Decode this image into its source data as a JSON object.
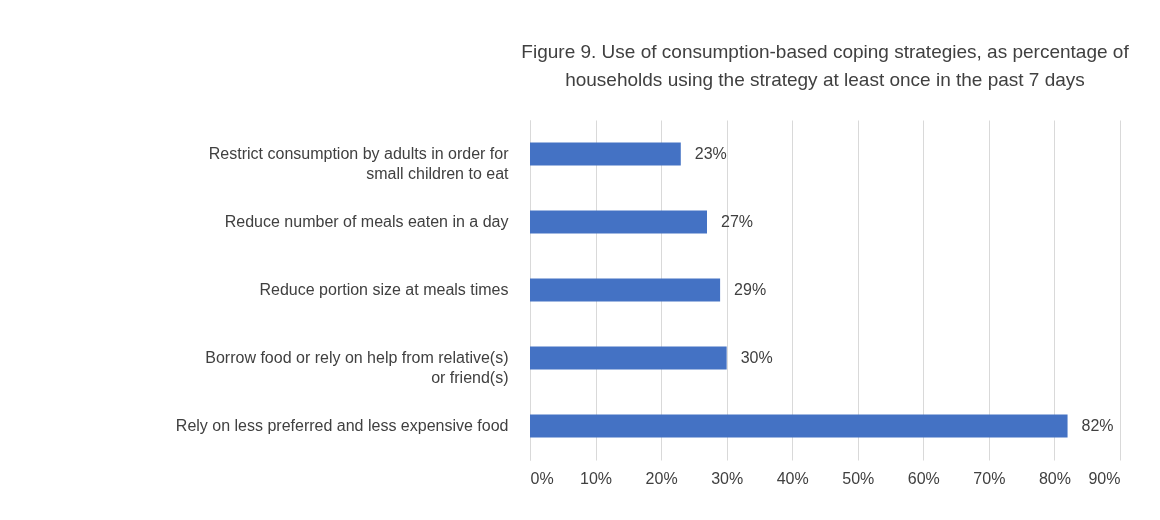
{
  "chart_data": {
    "type": "bar",
    "orientation": "horizontal",
    "title": "Figure 9. Use of consumption-based coping strategies, as percentage of households using the strategy at least once in the past 7 days",
    "categories": [
      "Restrict consumption by adults in order for small children to eat",
      "Reduce number of meals eaten in a day",
      "Reduce portion size at meals times",
      "Borrow food or rely on help from relative(s) or friend(s)",
      "Rely on less preferred and less expensive food"
    ],
    "values": [
      23,
      27,
      29,
      30,
      82
    ],
    "value_labels": [
      "23%",
      "27%",
      "29%",
      "30%",
      "82%"
    ],
    "color": "#4472c4",
    "xlim": [
      0,
      90
    ],
    "xticks": [
      {
        "value": 0,
        "label": "0%"
      },
      {
        "value": 10,
        "label": "10%"
      },
      {
        "value": 20,
        "label": "20%"
      },
      {
        "value": 30,
        "label": "30%"
      },
      {
        "value": 40,
        "label": "40%"
      },
      {
        "value": 50,
        "label": "50%"
      },
      {
        "value": 60,
        "label": "60%"
      },
      {
        "value": 70,
        "label": "70%"
      },
      {
        "value": 80,
        "label": "80%"
      },
      {
        "value": 90,
        "label": "90%"
      }
    ],
    "grid": "x"
  }
}
